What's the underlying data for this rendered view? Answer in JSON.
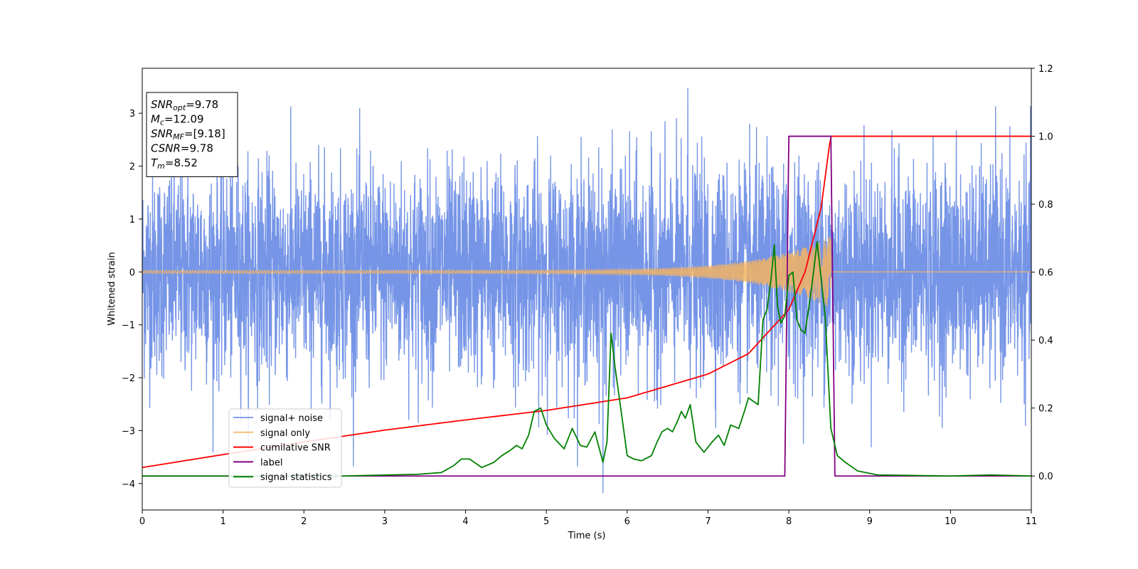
{
  "chart_data": {
    "type": "line",
    "xlabel": "Time (s)",
    "ylabel": "Whitened strain",
    "xlim": [
      0,
      11
    ],
    "ylim": [
      -4.5,
      3.85
    ],
    "ylim_right": [
      -0.1,
      1.2
    ],
    "x_ticks": [
      "0",
      "1",
      "2",
      "3",
      "4",
      "5",
      "6",
      "7",
      "8",
      "9",
      "10",
      "11"
    ],
    "y_ticks": [
      "−4",
      "−3",
      "−2",
      "−1",
      "0",
      "1",
      "2",
      "3"
    ],
    "y_ticks_right": [
      "0.0",
      "0.2",
      "0.4",
      "0.6",
      "0.8",
      "1.0",
      "1.2"
    ],
    "annotation": {
      "lines": [
        {
          "var": "SNR",
          "sub": "opt",
          "value": "=9.78"
        },
        {
          "var": "M",
          "sub": "c",
          "value": "=12.09"
        },
        {
          "var": "SNR",
          "sub": "MF",
          "value": "=[9.18]"
        },
        {
          "var": "CSNR",
          "sub": "",
          "value": "=9.78"
        },
        {
          "var": "T",
          "sub": "m",
          "value": "=8.52"
        }
      ]
    },
    "legend_position": "lower-left",
    "series": [
      {
        "name": "signal+ noise",
        "axis": "left",
        "color": "#6f8fe6",
        "noise_amplitude": 1.0,
        "noise_extremes": [
          -4.18,
          3.48
        ]
      },
      {
        "name": "signal only",
        "axis": "left",
        "color": "#f5b461",
        "chirp_amplitude_start": 0.03,
        "chirp_amplitude_peak": 0.68,
        "chirp_peak_time": 8.52
      },
      {
        "name": "cumilative SNR",
        "axis": "right",
        "color": "#ff0000",
        "x": [
          0,
          1,
          2,
          3,
          4,
          5,
          6,
          7,
          7.5,
          8,
          8.2,
          8.4,
          8.5,
          8.52,
          11
        ],
        "y": [
          0.025,
          0.063,
          0.1,
          0.135,
          0.165,
          0.193,
          0.23,
          0.3,
          0.36,
          0.49,
          0.6,
          0.79,
          0.97,
          1.0,
          1.0
        ]
      },
      {
        "name": "label",
        "axis": "right",
        "color": "#800080",
        "x": [
          0,
          7.95,
          8.0,
          8.52,
          8.57,
          11
        ],
        "y": [
          0.0,
          0.0,
          1.0,
          1.0,
          0.0,
          0.0
        ]
      },
      {
        "name": "signal statistics",
        "axis": "right",
        "color": "#008000",
        "x": [
          0,
          2.5,
          3.4,
          3.7,
          3.85,
          3.95,
          4.05,
          4.2,
          4.35,
          4.45,
          4.55,
          4.63,
          4.7,
          4.78,
          4.85,
          4.93,
          5.0,
          5.1,
          5.22,
          5.32,
          5.42,
          5.5,
          5.6,
          5.7,
          5.75,
          5.8,
          5.85,
          5.92,
          6.0,
          6.08,
          6.18,
          6.3,
          6.37,
          6.43,
          6.5,
          6.56,
          6.62,
          6.67,
          6.72,
          6.78,
          6.85,
          6.95,
          7.05,
          7.13,
          7.2,
          7.28,
          7.38,
          7.45,
          7.5,
          7.56,
          7.62,
          7.68,
          7.73,
          7.78,
          7.82,
          7.86,
          7.9,
          7.95,
          8.0,
          8.05,
          8.1,
          8.15,
          8.2,
          8.28,
          8.35,
          8.45,
          8.52,
          8.6,
          8.7,
          8.85,
          9.1,
          10,
          10.5,
          11
        ],
        "y": [
          0.0,
          0.0,
          0.005,
          0.01,
          0.03,
          0.05,
          0.05,
          0.025,
          0.04,
          0.06,
          0.075,
          0.09,
          0.08,
          0.12,
          0.19,
          0.2,
          0.15,
          0.11,
          0.08,
          0.14,
          0.09,
          0.085,
          0.13,
          0.04,
          0.1,
          0.42,
          0.32,
          0.2,
          0.06,
          0.05,
          0.045,
          0.06,
          0.1,
          0.13,
          0.14,
          0.13,
          0.16,
          0.19,
          0.17,
          0.21,
          0.1,
          0.07,
          0.1,
          0.12,
          0.09,
          0.15,
          0.14,
          0.19,
          0.23,
          0.22,
          0.21,
          0.46,
          0.49,
          0.58,
          0.68,
          0.5,
          0.45,
          0.47,
          0.59,
          0.6,
          0.46,
          0.43,
          0.42,
          0.55,
          0.69,
          0.47,
          0.14,
          0.06,
          0.04,
          0.015,
          0.003,
          0.0,
          0.003,
          0.0
        ]
      }
    ]
  }
}
